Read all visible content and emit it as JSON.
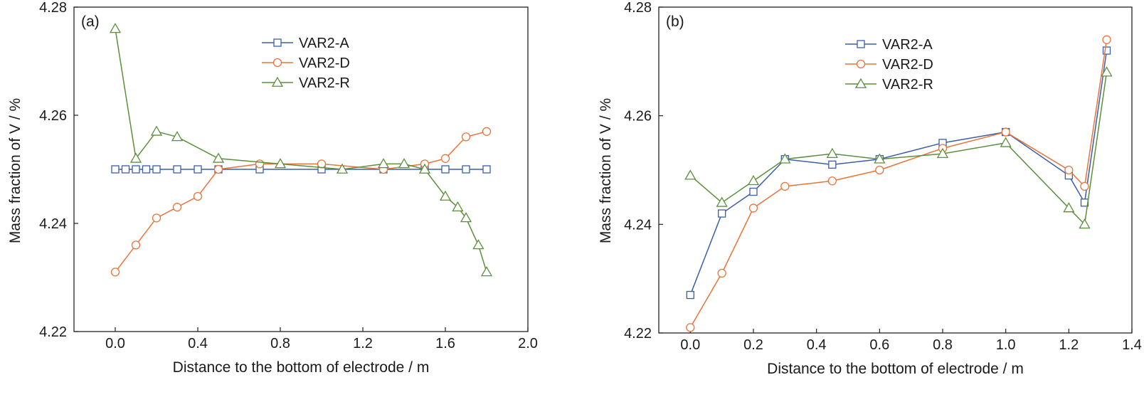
{
  "colors": {
    "VAR2-A": "#3a5ea8",
    "VAR2-D": "#e8743b",
    "VAR2-R": "#5c8f3c",
    "axis": "#222222"
  },
  "chart_data": [
    {
      "type": "line",
      "panel_label": "(a)",
      "xlabel": "Distance to the bottom of electrode / m",
      "ylabel": "Mass fraction of V / %",
      "xlim": [
        -0.2,
        2.0
      ],
      "ylim": [
        4.22,
        4.28
      ],
      "xticks": [
        0.0,
        0.4,
        0.8,
        1.2,
        1.6,
        2.0
      ],
      "xtick_labels": [
        "0.0",
        "0.4",
        "0.8",
        "1.2",
        "1.6",
        "2.0"
      ],
      "yticks": [
        4.22,
        4.24,
        4.26,
        4.28
      ],
      "ytick_labels": [
        "4.22",
        "4.24",
        "4.26",
        "4.28"
      ],
      "legend_position": "top-center",
      "grid": false,
      "series": [
        {
          "name": "VAR2-A",
          "marker": "square",
          "x": [
            0.0,
            0.05,
            0.1,
            0.15,
            0.2,
            0.3,
            0.4,
            0.5,
            0.7,
            1.0,
            1.3,
            1.5,
            1.6,
            1.7,
            1.8
          ],
          "y": [
            4.25,
            4.25,
            4.25,
            4.25,
            4.25,
            4.25,
            4.25,
            4.25,
            4.25,
            4.25,
            4.25,
            4.25,
            4.25,
            4.25,
            4.25
          ]
        },
        {
          "name": "VAR2-D",
          "marker": "circle",
          "x": [
            0.0,
            0.1,
            0.2,
            0.3,
            0.4,
            0.5,
            0.7,
            1.0,
            1.3,
            1.5,
            1.6,
            1.7,
            1.8
          ],
          "y": [
            4.231,
            4.236,
            4.241,
            4.243,
            4.245,
            4.25,
            4.251,
            4.251,
            4.25,
            4.251,
            4.252,
            4.256,
            4.257
          ]
        },
        {
          "name": "VAR2-R",
          "marker": "triangle",
          "x": [
            0.0,
            0.1,
            0.2,
            0.3,
            0.5,
            0.8,
            1.1,
            1.3,
            1.4,
            1.5,
            1.6,
            1.66,
            1.7,
            1.76,
            1.8
          ],
          "y": [
            4.276,
            4.252,
            4.257,
            4.256,
            4.252,
            4.251,
            4.25,
            4.251,
            4.251,
            4.25,
            4.245,
            4.243,
            4.241,
            4.236,
            4.231
          ]
        }
      ]
    },
    {
      "type": "line",
      "panel_label": "(b)",
      "xlabel": "Distance to the bottom of electrode / m",
      "ylabel": "Mass fraction of V / %",
      "xlim": [
        -0.1,
        1.4
      ],
      "ylim": [
        4.22,
        4.28
      ],
      "xticks": [
        0.0,
        0.2,
        0.4,
        0.6,
        0.8,
        1.0,
        1.2,
        1.4
      ],
      "xtick_labels": [
        "0.0",
        "0.2",
        "0.4",
        "0.6",
        "0.8",
        "1.0",
        "1.2",
        "1.4"
      ],
      "yticks": [
        4.22,
        4.24,
        4.26,
        4.28
      ],
      "ytick_labels": [
        "4.22",
        "4.24",
        "4.26",
        "4.28"
      ],
      "legend_position": "top-center",
      "grid": false,
      "series": [
        {
          "name": "VAR2-A",
          "marker": "square",
          "x": [
            0.0,
            0.1,
            0.2,
            0.3,
            0.45,
            0.6,
            0.8,
            1.0,
            1.2,
            1.25,
            1.32
          ],
          "y": [
            4.227,
            4.242,
            4.246,
            4.252,
            4.251,
            4.252,
            4.255,
            4.257,
            4.249,
            4.244,
            4.272
          ]
        },
        {
          "name": "VAR2-D",
          "marker": "circle",
          "x": [
            0.0,
            0.1,
            0.2,
            0.3,
            0.45,
            0.6,
            0.8,
            1.0,
            1.2,
            1.25,
            1.32
          ],
          "y": [
            4.221,
            4.231,
            4.243,
            4.247,
            4.248,
            4.25,
            4.254,
            4.257,
            4.25,
            4.247,
            4.274
          ]
        },
        {
          "name": "VAR2-R",
          "marker": "triangle",
          "x": [
            0.0,
            0.1,
            0.2,
            0.3,
            0.45,
            0.6,
            0.8,
            1.0,
            1.2,
            1.25,
            1.32
          ],
          "y": [
            4.249,
            4.244,
            4.248,
            4.252,
            4.253,
            4.252,
            4.253,
            4.255,
            4.243,
            4.24,
            4.268
          ]
        }
      ]
    }
  ]
}
